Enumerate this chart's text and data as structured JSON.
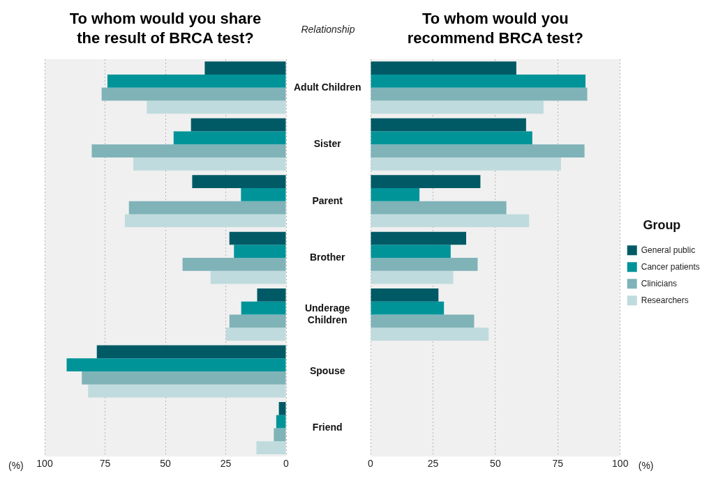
{
  "chart_data": [
    {
      "type": "bar",
      "orientation": "horizontal",
      "title": "To whom would you share the result of BRCA test?",
      "ylabel": "Relationship",
      "xlabel": "(%)",
      "categories": [
        "Adult Children",
        "Sister",
        "Parent",
        "Brother",
        "Underage Children",
        "Spouse",
        "Friend"
      ],
      "series": [
        {
          "color": "#005a66",
          "values": [
            33.7,
            39.4,
            38.9,
            23.5,
            12.0,
            78.4,
            3.0
          ]
        },
        {
          "color": "#009499",
          "values": [
            74.0,
            46.6,
            18.7,
            21.6,
            18.6,
            90.9,
            4.1
          ]
        },
        {
          "color": "#7fb3b8",
          "values": [
            76.4,
            80.5,
            65.1,
            42.9,
            23.5,
            84.6,
            5.1
          ]
        },
        {
          "color": "#c0dbdd",
          "values": [
            57.7,
            63.3,
            66.8,
            31.3,
            24.9,
            82.0,
            12.3
          ]
        }
      ],
      "xlim": [
        100,
        0
      ],
      "xticks": [
        100,
        75,
        50,
        25,
        0
      ],
      "grid": "x"
    },
    {
      "type": "bar",
      "orientation": "horizontal",
      "title": "To whom would you recommend BRCA test?",
      "xlabel": "(%)",
      "legend_title": "Group",
      "legend": "right",
      "categories": [
        null,
        null,
        null,
        null,
        null,
        null,
        null
      ],
      "series": [
        {
          "name": "General public",
          "color": "#005a66",
          "values": [
            58.4,
            62.3,
            44.0,
            38.3,
            27.2,
            null,
            null
          ]
        },
        {
          "name": "Cancer patients",
          "color": "#009499",
          "values": [
            86.1,
            64.8,
            19.6,
            32.1,
            29.4,
            null,
            null
          ]
        },
        {
          "name": "Clinicians",
          "color": "#7fb3b8",
          "values": [
            86.8,
            85.7,
            54.4,
            42.9,
            41.5,
            null,
            null
          ]
        },
        {
          "name": "Researchers",
          "color": "#c0dbdd",
          "values": [
            69.3,
            76.3,
            63.5,
            33.1,
            47.3,
            null,
            null
          ]
        }
      ],
      "xlim": [
        0,
        100
      ],
      "xticks": [
        0,
        25,
        50,
        75,
        100
      ],
      "grid": "x",
      "tick_labels": "x"
    }
  ]
}
